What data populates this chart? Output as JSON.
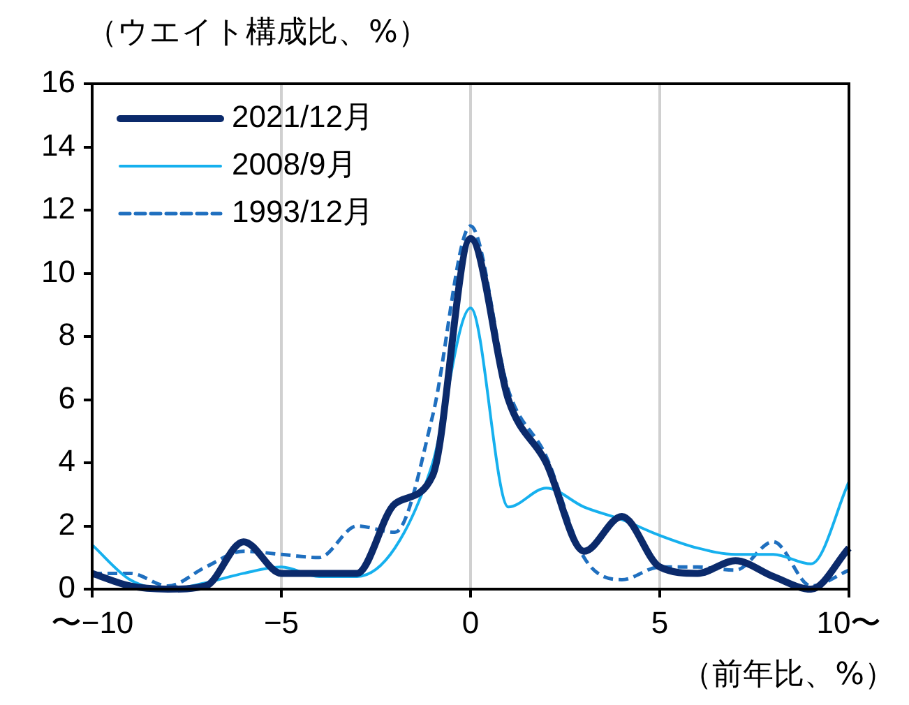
{
  "chart_data": {
    "type": "line",
    "ylabel": "（ウエイト構成比、%）",
    "xlabel": "（前年比、%）",
    "x": [
      -10,
      -9,
      -8,
      -7,
      -6,
      -5,
      -4,
      -3,
      -2,
      -1,
      0,
      1,
      2,
      3,
      4,
      5,
      6,
      7,
      8,
      9,
      10
    ],
    "xlim": [
      -10,
      10
    ],
    "xticks": [
      {
        "value": -10,
        "label": "〜−10"
      },
      {
        "value": -5,
        "label": "−5"
      },
      0,
      5,
      {
        "value": 10,
        "label": "10〜"
      }
    ],
    "ylim": [
      0,
      16
    ],
    "yticks": [
      0,
      2,
      4,
      6,
      8,
      10,
      12,
      14,
      16
    ],
    "grid": "x",
    "legend": "top left",
    "marker": "none",
    "series": [
      {
        "name": "2021/12月",
        "color": "#0b2a6b",
        "line_style": "solid",
        "values": [
          0.5,
          0.1,
          0.0,
          0.1,
          1.5,
          0.5,
          0.5,
          0.5,
          2.7,
          3.6,
          11.1,
          6.0,
          4.0,
          1.2,
          2.3,
          0.7,
          0.5,
          0.9,
          0.4,
          0.0,
          1.3
        ]
      },
      {
        "name": "2008/9月",
        "color": "#16b0ee",
        "line_style": "solid",
        "values": [
          1.4,
          0.3,
          0.0,
          0.2,
          0.5,
          0.7,
          0.4,
          0.4,
          1.3,
          4.0,
          8.9,
          2.6,
          3.2,
          2.6,
          2.2,
          1.7,
          1.3,
          1.1,
          1.1,
          0.8,
          3.4
        ]
      },
      {
        "name": "1993/12月",
        "color": "#1f6fbf",
        "line_style": "dashed",
        "values": [
          0.5,
          0.5,
          0.1,
          0.7,
          1.2,
          1.1,
          1.0,
          2.0,
          1.8,
          5.5,
          11.5,
          6.3,
          4.2,
          1.0,
          0.3,
          0.7,
          0.7,
          0.6,
          1.5,
          0.1,
          0.6
        ]
      }
    ]
  }
}
